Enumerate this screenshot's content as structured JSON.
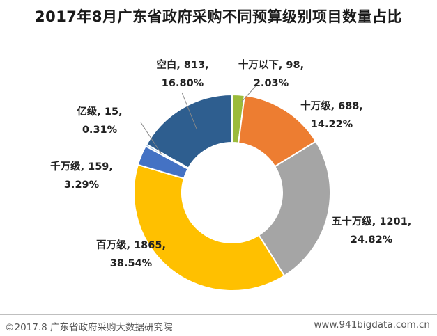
{
  "chart_data": {
    "type": "pie",
    "title": "2017年8月广东省政府采购不同预算级别项目数量占比",
    "categories": [
      "十万以下",
      "十万级",
      "五十万级",
      "百万级",
      "千万级",
      "亿级",
      "空白"
    ],
    "values": [
      98,
      688,
      1201,
      1865,
      159,
      15,
      813
    ],
    "percents": [
      2.03,
      14.22,
      24.82,
      38.54,
      3.29,
      0.31,
      16.8
    ],
    "label_lines": [
      [
        "十万以下, 98,",
        "2.03%"
      ],
      [
        "十万级, 688,",
        "14.22%"
      ],
      [
        "五十万级, 1201,",
        "24.82%"
      ],
      [
        "百万级, 1865,",
        "38.54%"
      ],
      [
        "千万级, 159,",
        "3.29%"
      ],
      [
        "亿级, 15,",
        "0.31%"
      ],
      [
        "空白, 813,",
        "16.80%"
      ]
    ],
    "colors": [
      "#9bbb3b",
      "#ed7d31",
      "#a5a5a5",
      "#ffc000",
      "#4472c4",
      "#5b9bd5",
      "#2e5e8f"
    ],
    "donut": true,
    "legend": "none"
  },
  "footer": {
    "source": "©2017.8 广东省政府采购大数据研究院",
    "website": "www.941bigdata.com.cn"
  }
}
